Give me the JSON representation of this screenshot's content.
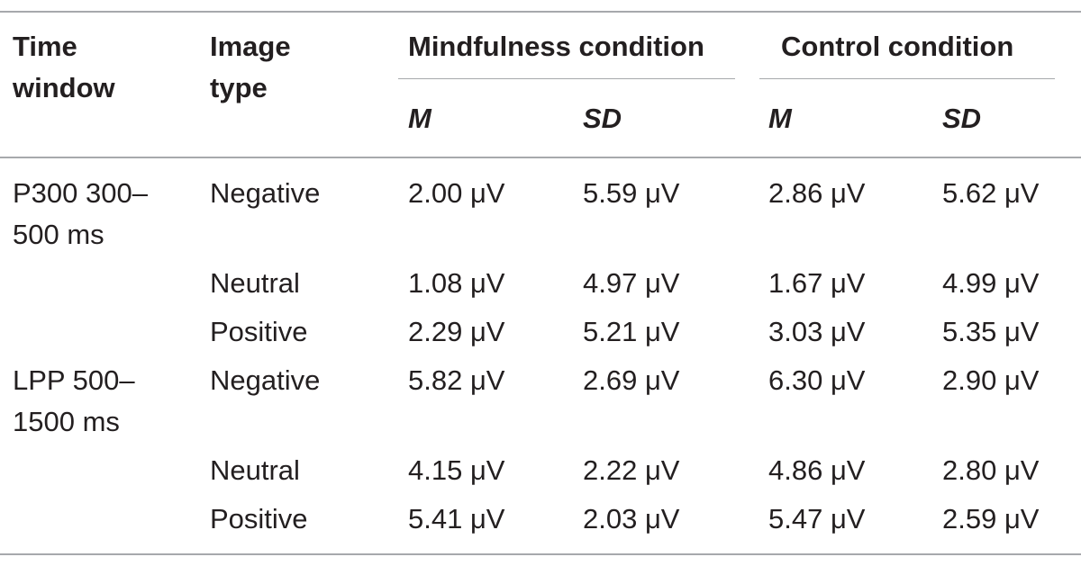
{
  "header": {
    "col1": [
      "Time",
      "window"
    ],
    "col2": [
      "Image",
      "type"
    ],
    "group_mindfulness": "Mindfulness condition",
    "group_control": "Control condition",
    "sub_m1": "M",
    "sub_sd1": "SD",
    "sub_m2": "M",
    "sub_sd2": "SD"
  },
  "rows": [
    {
      "time_window": [
        "P300 300–",
        "500 ms"
      ],
      "image_type": "Negative",
      "mind_m": "2.00 μV",
      "mind_sd": "5.59 μV",
      "ctrl_m": "2.86 μV",
      "ctrl_sd": "5.62 μV"
    },
    {
      "time_window": [
        "",
        ""
      ],
      "image_type": "Neutral",
      "mind_m": "1.08 μV",
      "mind_sd": "4.97 μV",
      "ctrl_m": "1.67 μV",
      "ctrl_sd": "4.99 μV"
    },
    {
      "time_window": [
        "",
        ""
      ],
      "image_type": "Positive",
      "mind_m": "2.29 μV",
      "mind_sd": "5.21 μV",
      "ctrl_m": "3.03 μV",
      "ctrl_sd": "5.35 μV"
    },
    {
      "time_window": [
        "LPP 500–",
        "1500 ms"
      ],
      "image_type": "Negative",
      "mind_m": "5.82 μV",
      "mind_sd": "2.69 μV",
      "ctrl_m": "6.30 μV",
      "ctrl_sd": "2.90 μV"
    },
    {
      "time_window": [
        "",
        ""
      ],
      "image_type": "Neutral",
      "mind_m": "4.15 μV",
      "mind_sd": "2.22 μV",
      "ctrl_m": "4.86 μV",
      "ctrl_sd": "2.80 μV"
    },
    {
      "time_window": [
        "",
        ""
      ],
      "image_type": "Positive",
      "mind_m": "5.41 μV",
      "mind_sd": "2.03 μV",
      "ctrl_m": "5.47 μV",
      "ctrl_sd": "2.59 μV"
    }
  ]
}
